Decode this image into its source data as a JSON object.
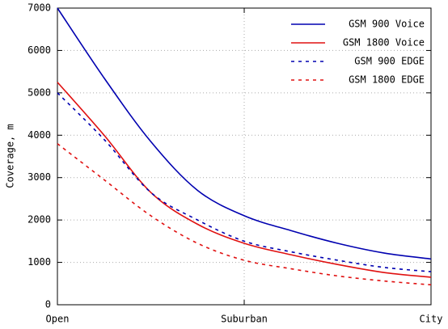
{
  "chart_data": {
    "type": "line",
    "y_label": "Coverage, m",
    "x": [
      0,
      0.25,
      0.5,
      0.75,
      1,
      1.25,
      1.5,
      1.75,
      2
    ],
    "xlim": [
      0,
      2
    ],
    "xticks": [
      {
        "value": 0,
        "label": "Open"
      },
      {
        "value": 1,
        "label": "Suburban"
      },
      {
        "value": 2,
        "label": "City"
      }
    ],
    "ylim": [
      0,
      7000
    ],
    "yticks": [
      0,
      1000,
      2000,
      3000,
      4000,
      5000,
      6000,
      7000
    ],
    "grid": true,
    "legend": "upper right",
    "series": [
      {
        "name": "GSM 900 Voice",
        "color": "#0000b0",
        "linestyle": "solid",
        "values": [
          7000,
          5350,
          3850,
          2700,
          2100,
          1750,
          1450,
          1220,
          1080
        ]
      },
      {
        "name": "GSM 1800 Voice",
        "color": "#e01010",
        "linestyle": "solid",
        "values": [
          5250,
          4000,
          2650,
          1900,
          1450,
          1180,
          950,
          760,
          650
        ]
      },
      {
        "name": "GSM 900 EDGE",
        "color": "#0000b0",
        "linestyle": "dashed",
        "values": [
          5000,
          3900,
          2650,
          2000,
          1500,
          1250,
          1050,
          880,
          780
        ]
      },
      {
        "name": "GSM 1800 EDGE",
        "color": "#e01010",
        "linestyle": "dashed",
        "values": [
          3800,
          2950,
          2100,
          1450,
          1050,
          850,
          680,
          560,
          470
        ]
      }
    ]
  }
}
